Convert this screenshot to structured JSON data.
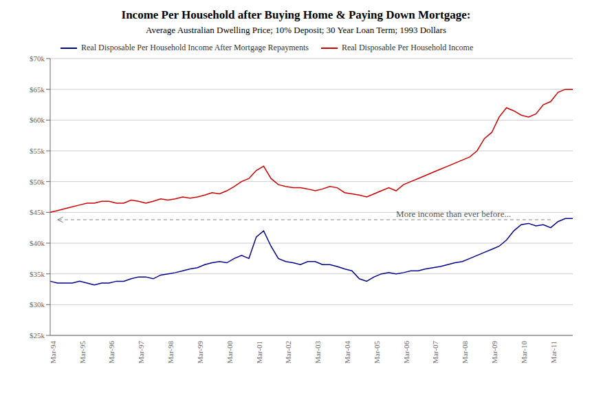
{
  "chart_data": {
    "type": "line",
    "title": "Income Per Household after Buying Home & Paying Down Mortgage:",
    "subtitle": "Average Australian Dwelling Price; 10% Deposit; 30 Year Loan Term; 1993 Dollars",
    "categories": [
      "Mar-94",
      null,
      null,
      null,
      "Mar-95",
      null,
      null,
      null,
      "Mar-96",
      null,
      null,
      null,
      "Mar-97",
      null,
      null,
      null,
      "Mar-98",
      null,
      null,
      null,
      "Mar-99",
      null,
      null,
      null,
      "Mar-00",
      null,
      null,
      null,
      "Mar-01",
      null,
      null,
      null,
      "Mar-02",
      null,
      null,
      null,
      "Mar-03",
      null,
      null,
      null,
      "Mar-04",
      null,
      null,
      null,
      "Mar-05",
      null,
      null,
      null,
      "Mar-06",
      null,
      null,
      null,
      "Mar-07",
      null,
      null,
      null,
      "Mar-08",
      null,
      null,
      null,
      "Mar-09",
      null,
      null,
      null,
      "Mar-10",
      null,
      null,
      null,
      "Mar-11",
      null,
      null,
      null
    ],
    "series": [
      {
        "name": "Real Disposable Per Household Income",
        "color": "#CC0000",
        "values": [
          45000,
          45300,
          45600,
          45900,
          46200,
          46500,
          46500,
          46800,
          46800,
          46500,
          46500,
          47000,
          46800,
          46500,
          46800,
          47200,
          47000,
          47200,
          47500,
          47300,
          47500,
          47800,
          48200,
          48000,
          48500,
          49200,
          50000,
          50500,
          51800,
          52500,
          50500,
          49500,
          49200,
          49000,
          49000,
          48800,
          48500,
          48800,
          49200,
          49000,
          48200,
          48000,
          47800,
          47500,
          48000,
          48500,
          49000,
          48500,
          49500,
          50000,
          50500,
          51000,
          51500,
          52000,
          52500,
          53000,
          53500,
          54000,
          55000,
          57000,
          58000,
          60500,
          62000,
          61500,
          60800,
          60500,
          61000,
          62500,
          63000,
          64500,
          65000,
          65000
        ]
      },
      {
        "name": "Real Disposable Per Household Income After Mortgage Repayments",
        "color": "#00008B",
        "values": [
          33800,
          33500,
          33500,
          33500,
          33800,
          33500,
          33200,
          33500,
          33500,
          33800,
          33800,
          34200,
          34500,
          34500,
          34200,
          34800,
          35000,
          35200,
          35500,
          35800,
          36000,
          36500,
          36800,
          37000,
          36800,
          37500,
          38000,
          37500,
          41000,
          42000,
          39500,
          37500,
          37000,
          36800,
          36500,
          37000,
          37000,
          36500,
          36500,
          36200,
          35800,
          35500,
          34200,
          33800,
          34500,
          35000,
          35200,
          35000,
          35200,
          35500,
          35500,
          35800,
          36000,
          36200,
          36500,
          36800,
          37000,
          37500,
          38000,
          38500,
          39000,
          39500,
          40500,
          42000,
          43000,
          43200,
          42800,
          43000,
          42500,
          43500,
          44000,
          44000
        ]
      }
    ],
    "ylim": [
      25000,
      70000
    ],
    "yticks": [
      {
        "value": 25000,
        "label": "$25k"
      },
      {
        "value": 30000,
        "label": "$30k"
      },
      {
        "value": 35000,
        "label": "$35k"
      },
      {
        "value": 40000,
        "label": "$40k"
      },
      {
        "value": 45000,
        "label": "$45k"
      },
      {
        "value": 50000,
        "label": "$50k"
      },
      {
        "value": 55000,
        "label": "$55k"
      },
      {
        "value": 60000,
        "label": "$60k"
      },
      {
        "value": 65000,
        "label": "$65k"
      },
      {
        "value": 70000,
        "label": "$70k"
      }
    ],
    "grid": true,
    "legend": "upper left",
    "annotations": [
      {
        "text": "More income than ever before...",
        "x": 47,
        "y": 44300,
        "arrow": {
          "from": [
            68,
            43800
          ],
          "to": [
            1,
            43800
          ]
        }
      }
    ]
  }
}
